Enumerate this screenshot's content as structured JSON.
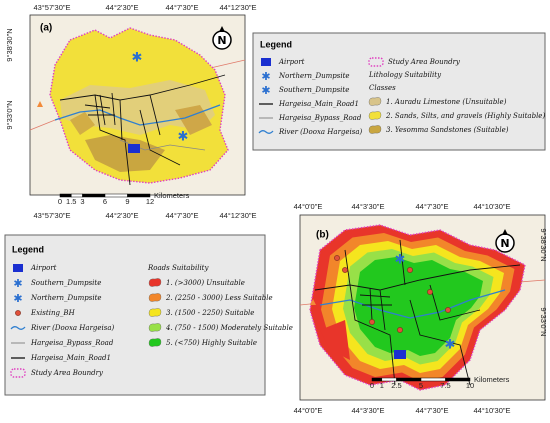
{
  "panels": [
    {
      "label": "(a)",
      "top_ticks": [
        "43°57'30\"E",
        "44°2'30\"E",
        "44°7'30\"E",
        "44°12'30\"E"
      ],
      "bottom_ticks": [
        "43°57'30\"E",
        "44°2'30\"E",
        "44°7'30\"E",
        "44°12'30\"E"
      ],
      "side_ticks": [
        "9°38'30\"N",
        "9°33'0\"N"
      ],
      "north": "N",
      "scale": {
        "ticks": [
          0,
          1.5,
          3,
          6,
          9,
          12
        ],
        "unit": "Kilometers"
      }
    },
    {
      "label": "(b)",
      "top_ticks": [
        "44°0'0\"E",
        "44°3'30\"E",
        "44°7'30\"E",
        "44°10'30\"E"
      ],
      "bottom_ticks": [
        "44°0'0\"E",
        "44°3'30\"E",
        "44°7'30\"E",
        "44°10'30\"E"
      ],
      "side_ticks": [
        "9°38'30\"N",
        "9°33'0\"N"
      ],
      "north": "N",
      "scale": {
        "ticks": [
          0,
          1,
          2.5,
          5,
          7.5,
          10
        ],
        "unit": "Kilometers"
      }
    }
  ],
  "legends": [
    {
      "title": "Legend",
      "items": [
        "Airport",
        "Northern_Dumpsite",
        "Southern_Dumpsite",
        "Hargeisa_Main_Road1",
        "Hargeisa_Bypass_Road",
        "River (Dooxa Hargeisa)"
      ],
      "boundary": "Study Area Boundry",
      "heading": "Lithology Suitability",
      "subheading": "Classes",
      "classes": [
        "1. Auradu Limestone (Unsuitable)",
        "2. Sands, Silts, and gravels (Highly Suitable)",
        "3. Yesomma Sandstones (Suitable)"
      ]
    },
    {
      "title": "Legend",
      "items": [
        "Airport",
        "Southern_Dumpsite",
        "Northern_Dumpsite",
        "Existing_BH",
        "River (Dooxa Hargeisa)",
        "Hargeisa_Bypass_Road",
        "Hargeisa_Main_Road1",
        "Study Area Boundry"
      ],
      "heading": "Roads Suitability",
      "classes": [
        "1. (>3000) Unsuitable",
        "2. (2250 - 3000) Less Suitable",
        "3. (1500 - 2250) Suitable",
        "4. (750 - 1500) Moderately Suitable",
        "5. (<750) Highly Suitable"
      ]
    }
  ]
}
